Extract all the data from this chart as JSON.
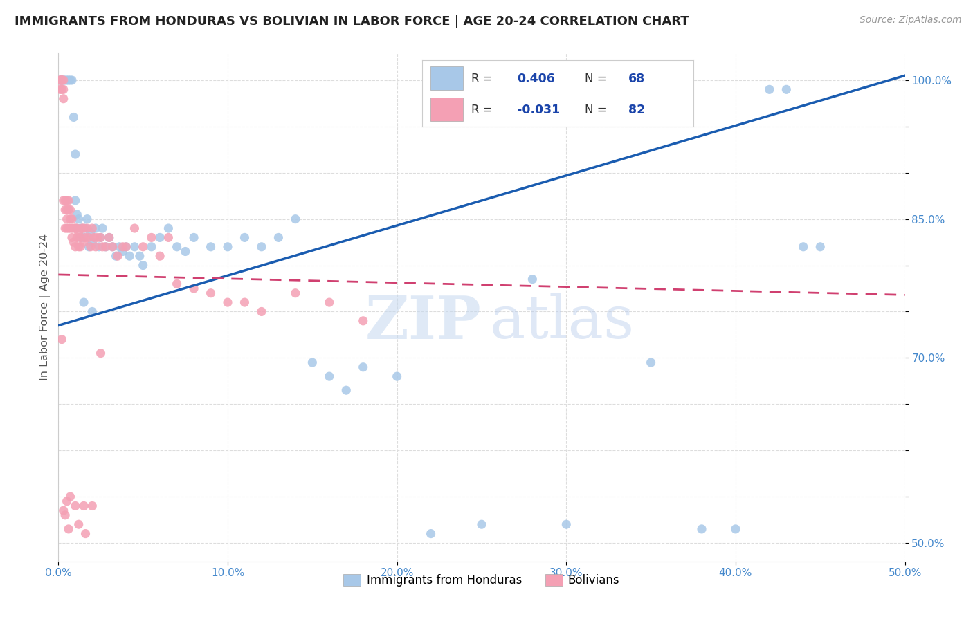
{
  "title": "IMMIGRANTS FROM HONDURAS VS BOLIVIAN IN LABOR FORCE | AGE 20-24 CORRELATION CHART",
  "source": "Source: ZipAtlas.com",
  "ylabel": "In Labor Force | Age 20-24",
  "xlim": [
    0.0,
    0.5
  ],
  "ylim": [
    0.48,
    1.03
  ],
  "xtick_vals": [
    0.0,
    0.1,
    0.2,
    0.3,
    0.4,
    0.5
  ],
  "xticklabels": [
    "0.0%",
    "10.0%",
    "20.0%",
    "30.0%",
    "40.0%",
    "50.0%"
  ],
  "ytick_vals": [
    0.5,
    0.55,
    0.6,
    0.65,
    0.7,
    0.75,
    0.8,
    0.85,
    0.9,
    0.95,
    1.0
  ],
  "yticklabels": [
    "50.0%",
    "",
    "",
    "",
    "70.0%",
    "",
    "",
    "85.0%",
    "",
    "",
    "100.0%"
  ],
  "blue_color": "#a8c8e8",
  "pink_color": "#f4a0b4",
  "blue_line_color": "#1a5cb0",
  "pink_line_color": "#d04070",
  "blue_line_x": [
    0.0,
    0.5
  ],
  "blue_line_y": [
    0.735,
    1.005
  ],
  "pink_line_x": [
    0.0,
    0.5
  ],
  "pink_line_y": [
    0.79,
    0.768
  ],
  "background_color": "#ffffff",
  "grid_color": "#dddddd",
  "title_color": "#222222",
  "axis_color": "#4488cc",
  "legend_text_color": "#1a44aa",
  "watermark_zip_color": "#c5d8ef",
  "watermark_atlas_color": "#b8ccec",
  "blue_x": [
    0.001,
    0.002,
    0.003,
    0.004,
    0.005,
    0.006,
    0.007,
    0.008,
    0.009,
    0.01,
    0.01,
    0.011,
    0.011,
    0.012,
    0.013,
    0.013,
    0.014,
    0.015,
    0.016,
    0.017,
    0.018,
    0.019,
    0.02,
    0.022,
    0.024,
    0.025,
    0.026,
    0.028,
    0.03,
    0.032,
    0.034,
    0.036,
    0.038,
    0.04,
    0.042,
    0.045,
    0.048,
    0.05,
    0.055,
    0.06,
    0.065,
    0.07,
    0.075,
    0.08,
    0.09,
    0.1,
    0.11,
    0.12,
    0.13,
    0.14,
    0.15,
    0.16,
    0.17,
    0.18,
    0.2,
    0.22,
    0.25,
    0.28,
    0.3,
    0.35,
    0.38,
    0.4,
    0.42,
    0.43,
    0.44,
    0.45,
    0.015,
    0.02
  ],
  "blue_y": [
    1.0,
    1.0,
    1.0,
    1.0,
    1.0,
    1.0,
    1.0,
    1.0,
    0.96,
    0.92,
    0.87,
    0.855,
    0.84,
    0.85,
    0.84,
    0.83,
    0.84,
    0.83,
    0.84,
    0.85,
    0.82,
    0.835,
    0.825,
    0.84,
    0.82,
    0.83,
    0.84,
    0.82,
    0.83,
    0.82,
    0.81,
    0.82,
    0.815,
    0.82,
    0.81,
    0.82,
    0.81,
    0.8,
    0.82,
    0.83,
    0.84,
    0.82,
    0.815,
    0.83,
    0.82,
    0.82,
    0.83,
    0.82,
    0.83,
    0.85,
    0.695,
    0.68,
    0.665,
    0.69,
    0.68,
    0.51,
    0.52,
    0.785,
    0.52,
    0.695,
    0.515,
    0.515,
    0.99,
    0.99,
    0.82,
    0.82,
    0.76,
    0.75
  ],
  "pink_x": [
    0.001,
    0.001,
    0.001,
    0.002,
    0.002,
    0.002,
    0.002,
    0.003,
    0.003,
    0.003,
    0.003,
    0.004,
    0.004,
    0.004,
    0.005,
    0.005,
    0.005,
    0.005,
    0.006,
    0.006,
    0.006,
    0.007,
    0.007,
    0.007,
    0.008,
    0.008,
    0.008,
    0.009,
    0.009,
    0.01,
    0.01,
    0.011,
    0.011,
    0.012,
    0.012,
    0.013,
    0.013,
    0.014,
    0.015,
    0.015,
    0.016,
    0.017,
    0.018,
    0.019,
    0.02,
    0.021,
    0.022,
    0.023,
    0.025,
    0.026,
    0.028,
    0.03,
    0.032,
    0.035,
    0.038,
    0.04,
    0.045,
    0.05,
    0.055,
    0.06,
    0.065,
    0.07,
    0.08,
    0.09,
    0.1,
    0.11,
    0.12,
    0.14,
    0.16,
    0.18,
    0.003,
    0.004,
    0.005,
    0.006,
    0.015,
    0.02,
    0.025,
    0.002,
    0.007,
    0.01,
    0.012,
    0.016
  ],
  "pink_y": [
    1.0,
    1.0,
    0.99,
    1.0,
    1.0,
    1.0,
    0.99,
    1.0,
    0.99,
    0.98,
    0.87,
    0.87,
    0.86,
    0.84,
    0.87,
    0.86,
    0.85,
    0.84,
    0.87,
    0.86,
    0.84,
    0.86,
    0.85,
    0.84,
    0.85,
    0.84,
    0.83,
    0.84,
    0.825,
    0.84,
    0.82,
    0.84,
    0.83,
    0.835,
    0.82,
    0.83,
    0.82,
    0.84,
    0.84,
    0.825,
    0.83,
    0.84,
    0.83,
    0.82,
    0.84,
    0.83,
    0.82,
    0.83,
    0.83,
    0.82,
    0.82,
    0.83,
    0.82,
    0.81,
    0.82,
    0.82,
    0.84,
    0.82,
    0.83,
    0.81,
    0.83,
    0.78,
    0.775,
    0.77,
    0.76,
    0.76,
    0.75,
    0.77,
    0.76,
    0.74,
    0.535,
    0.53,
    0.545,
    0.515,
    0.54,
    0.54,
    0.705,
    0.72,
    0.55,
    0.54,
    0.52,
    0.51
  ]
}
